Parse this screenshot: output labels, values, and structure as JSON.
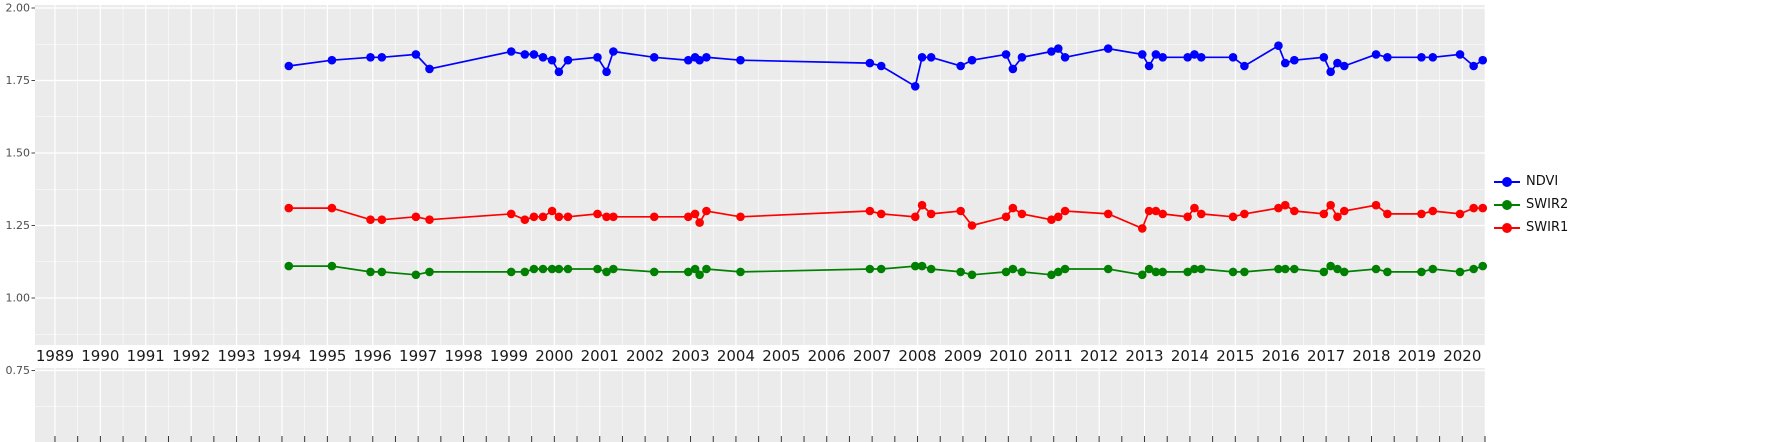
{
  "page": {
    "background": "#FFFFFF"
  },
  "chart_data": {
    "type": "line",
    "title": "",
    "xlabel": "",
    "ylabel": "",
    "panel_bg": "#EBEBEB",
    "grid_color": "#FFFFFF",
    "grid": true,
    "legend_position": "right",
    "xlim": [
      1988.56,
      2020.5
    ],
    "ylim": [
      0.75,
      2.0
    ],
    "x_ticks": [
      1989,
      1990,
      1991,
      1992,
      1993,
      1994,
      1995,
      1996,
      1997,
      1998,
      1999,
      2000,
      2001,
      2002,
      2003,
      2004,
      2005,
      2006,
      2007,
      2008,
      2009,
      2010,
      2011,
      2012,
      2013,
      2014,
      2015,
      2016,
      2017,
      2018,
      2019,
      2020
    ],
    "y_ticks": [
      {
        "v": 2.0,
        "label": "2.00"
      },
      {
        "v": 1.75,
        "label": "1.75"
      },
      {
        "v": 1.5,
        "label": "1.50"
      },
      {
        "v": 1.25,
        "label": "1.25"
      },
      {
        "v": 1.0,
        "label": "1.00"
      },
      {
        "v": 0.75,
        "label": "0.75"
      }
    ],
    "x": [
      1994.15,
      1995.1,
      1995.95,
      1996.2,
      1996.95,
      1997.25,
      1999.05,
      1999.35,
      1999.55,
      1999.75,
      1999.95,
      2000.1,
      2000.3,
      2000.95,
      2001.15,
      2001.3,
      2002.2,
      2002.95,
      2003.1,
      2003.2,
      2003.35,
      2004.1,
      2006.95,
      2007.2,
      2007.95,
      2008.1,
      2008.3,
      2008.95,
      2009.2,
      2009.95,
      2010.1,
      2010.3,
      2010.95,
      2011.1,
      2011.25,
      2012.2,
      2012.95,
      2013.1,
      2013.25,
      2013.4,
      2013.95,
      2014.1,
      2014.25,
      2014.95,
      2015.2,
      2015.95,
      2016.1,
      2016.3,
      2016.95,
      2017.1,
      2017.25,
      2017.4,
      2018.1,
      2018.35,
      2019.1,
      2019.35,
      2019.95,
      2020.25,
      2020.45
    ],
    "series": [
      {
        "name": "NDVI",
        "color": "#0000FF",
        "values": [
          1.8,
          1.82,
          1.83,
          1.83,
          1.84,
          1.79,
          1.85,
          1.84,
          1.84,
          1.83,
          1.82,
          1.78,
          1.82,
          1.83,
          1.78,
          1.85,
          1.83,
          1.82,
          1.83,
          1.82,
          1.83,
          1.82,
          1.81,
          1.8,
          1.73,
          1.83,
          1.83,
          1.8,
          1.82,
          1.84,
          1.79,
          1.83,
          1.85,
          1.86,
          1.83,
          1.86,
          1.84,
          1.8,
          1.84,
          1.83,
          1.83,
          1.84,
          1.83,
          1.83,
          1.8,
          1.87,
          1.81,
          1.82,
          1.83,
          1.78,
          1.81,
          1.8,
          1.84,
          1.83,
          1.83,
          1.83,
          1.84,
          1.8,
          1.82
        ]
      },
      {
        "name": "SWIR2",
        "color": "#008000",
        "values": [
          1.11,
          1.11,
          1.09,
          1.09,
          1.08,
          1.09,
          1.09,
          1.09,
          1.1,
          1.1,
          1.1,
          1.1,
          1.1,
          1.1,
          1.09,
          1.1,
          1.09,
          1.09,
          1.1,
          1.08,
          1.1,
          1.09,
          1.1,
          1.1,
          1.11,
          1.11,
          1.1,
          1.09,
          1.08,
          1.09,
          1.1,
          1.09,
          1.08,
          1.09,
          1.1,
          1.1,
          1.08,
          1.1,
          1.09,
          1.09,
          1.09,
          1.1,
          1.1,
          1.09,
          1.09,
          1.1,
          1.1,
          1.1,
          1.09,
          1.11,
          1.1,
          1.09,
          1.1,
          1.09,
          1.09,
          1.1,
          1.09,
          1.1,
          1.11
        ]
      },
      {
        "name": "SWIR1",
        "color": "#FF0000",
        "values": [
          1.31,
          1.31,
          1.27,
          1.27,
          1.28,
          1.27,
          1.29,
          1.27,
          1.28,
          1.28,
          1.3,
          1.28,
          1.28,
          1.29,
          1.28,
          1.28,
          1.28,
          1.28,
          1.29,
          1.26,
          1.3,
          1.28,
          1.3,
          1.29,
          1.28,
          1.32,
          1.29,
          1.3,
          1.25,
          1.28,
          1.31,
          1.29,
          1.27,
          1.28,
          1.3,
          1.29,
          1.24,
          1.3,
          1.3,
          1.29,
          1.28,
          1.31,
          1.29,
          1.28,
          1.29,
          1.31,
          1.32,
          1.3,
          1.29,
          1.32,
          1.28,
          1.3,
          1.32,
          1.29,
          1.29,
          1.3,
          1.29,
          1.31,
          1.31
        ]
      }
    ]
  },
  "legend": {
    "order_note": "NDVI, SWIR2, SWIR1 top to bottom"
  }
}
